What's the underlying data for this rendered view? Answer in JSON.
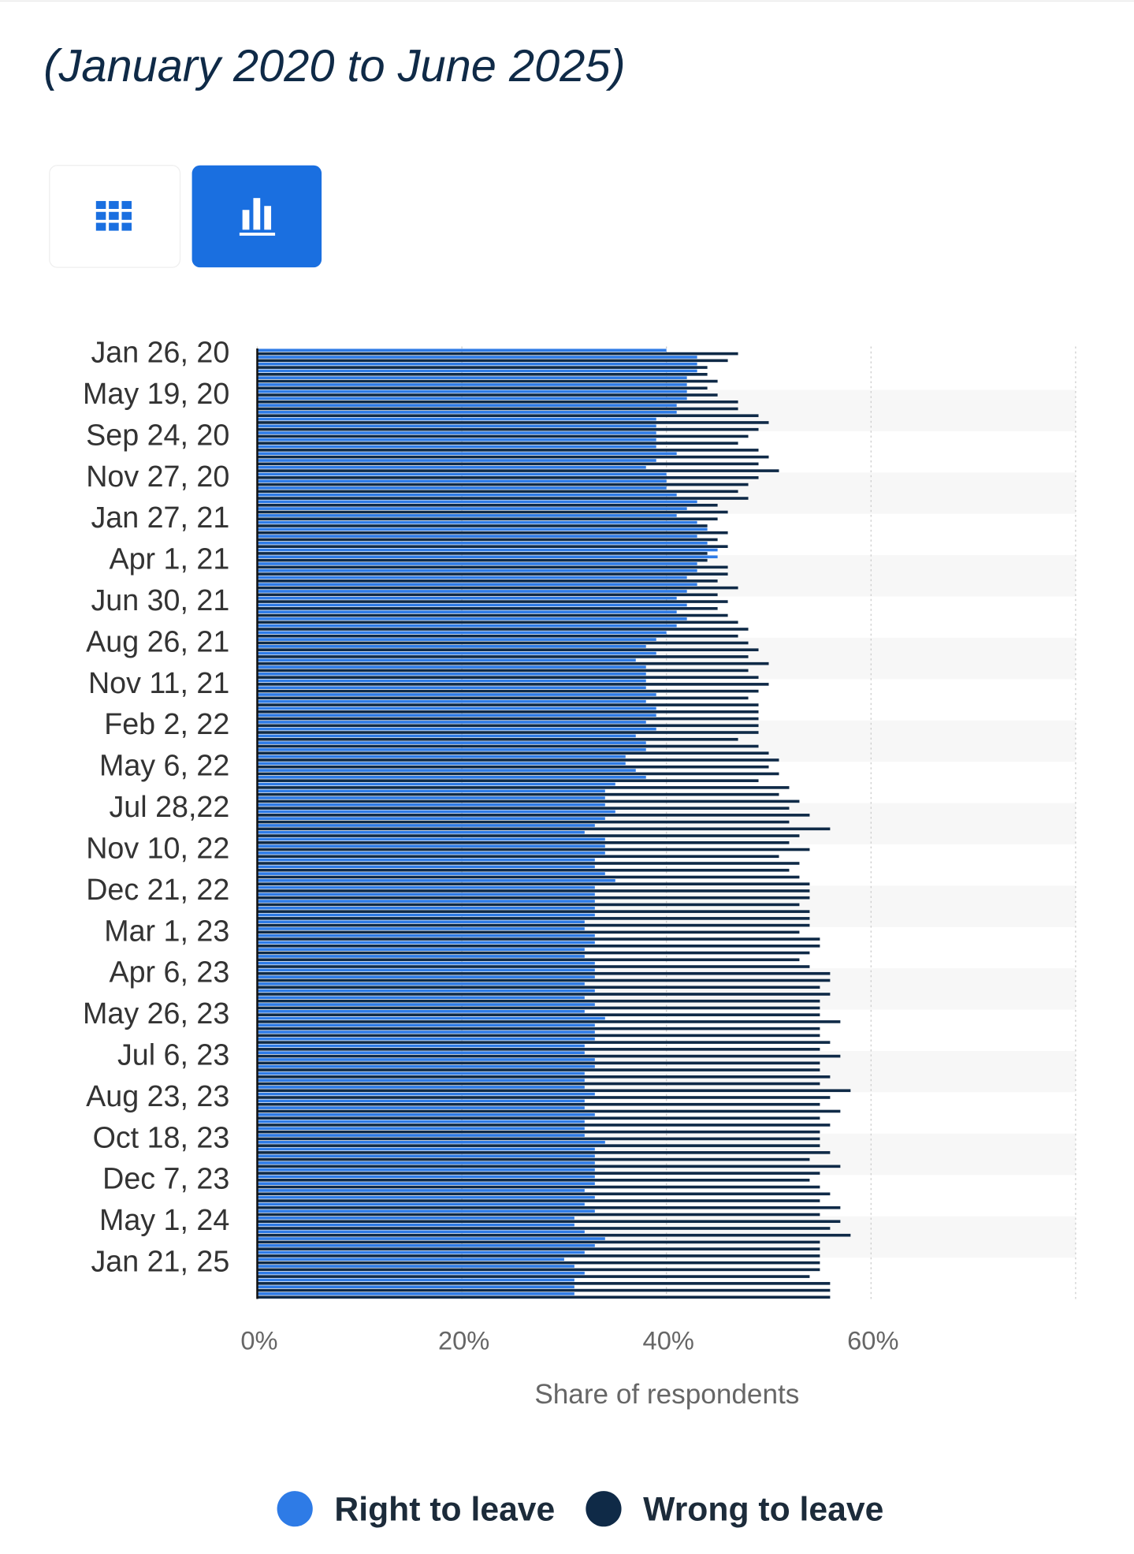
{
  "chart_data": {
    "type": "hbar",
    "subtitle": "(January 2020 to June 2025)",
    "x_label": "Share of respondents",
    "categories": [
      "Jan 26, 20",
      null,
      null,
      null,
      null,
      null,
      "May 19, 20",
      null,
      null,
      null,
      null,
      null,
      "Sep 24, 20",
      null,
      null,
      null,
      null,
      null,
      "Nov 27, 20",
      null,
      null,
      null,
      null,
      null,
      "Jan 27, 21",
      null,
      null,
      null,
      null,
      null,
      "Apr 1, 21",
      null,
      null,
      null,
      null,
      null,
      "Jun 30, 21",
      null,
      null,
      null,
      null,
      null,
      "Aug 26, 21",
      null,
      null,
      null,
      null,
      null,
      "Nov 11, 21",
      null,
      null,
      null,
      null,
      null,
      "Feb 2, 22",
      null,
      null,
      null,
      null,
      null,
      "May 6, 22",
      null,
      null,
      null,
      null,
      null,
      "Jul 28,22",
      null,
      null,
      null,
      null,
      null,
      "Nov 10, 22",
      null,
      null,
      null,
      null,
      null,
      "Dec 21, 22",
      null,
      null,
      null,
      null,
      null,
      "Mar 1, 23",
      null,
      null,
      null,
      null,
      null,
      "Apr 6, 23",
      null,
      null,
      null,
      null,
      null,
      "May 26, 23",
      null,
      null,
      null,
      null,
      null,
      "Jul 6, 23",
      null,
      null,
      null,
      null,
      null,
      "Aug 23, 23",
      null,
      null,
      null,
      null,
      null,
      "Oct 18, 23",
      null,
      null,
      null,
      null,
      null,
      "Dec 7, 23",
      null,
      null,
      null,
      null,
      null,
      "May 1, 24",
      null,
      null,
      null,
      null,
      null,
      "Jan 21, 25",
      null,
      null,
      null,
      null,
      null
    ],
    "series": [
      {
        "name": "Right to leave",
        "color": "#2e7be6",
        "values": [
          40,
          43,
          43,
          43,
          42,
          42,
          42,
          42,
          41,
          41,
          39,
          39,
          39,
          39,
          39,
          41,
          39,
          38,
          40,
          40,
          40,
          41,
          43,
          42,
          41,
          43,
          44,
          43,
          44,
          45,
          45,
          43,
          43,
          42,
          43,
          42,
          41,
          42,
          41,
          42,
          41,
          40,
          39,
          38,
          39,
          37,
          38,
          38,
          38,
          38,
          39,
          38,
          39,
          39,
          38,
          39,
          37,
          38,
          38,
          36,
          36,
          37,
          38,
          35,
          34,
          34,
          34,
          35,
          34,
          33,
          32,
          34,
          34,
          34,
          33,
          33,
          34,
          35,
          33,
          33,
          33,
          33,
          33,
          32,
          32,
          33,
          33,
          32,
          32,
          33,
          33,
          33,
          32,
          33,
          32,
          33,
          32,
          34,
          33,
          33,
          33,
          32,
          32,
          33,
          33,
          32,
          32,
          32,
          33,
          32,
          32,
          33,
          32,
          32,
          32,
          34,
          33,
          33,
          33,
          33,
          33,
          33,
          32,
          33,
          32,
          33,
          31,
          31,
          32,
          34,
          33,
          32,
          30,
          31,
          32,
          31,
          31,
          31
        ]
      },
      {
        "name": "Wrong to leave",
        "color": "#0f2a47",
        "values": [
          47,
          46,
          44,
          44,
          45,
          44,
          45,
          47,
          47,
          49,
          50,
          49,
          48,
          47,
          49,
          50,
          49,
          51,
          49,
          48,
          47,
          48,
          45,
          46,
          45,
          44,
          46,
          45,
          46,
          44,
          44,
          46,
          46,
          45,
          47,
          45,
          46,
          45,
          46,
          47,
          48,
          47,
          48,
          49,
          48,
          50,
          48,
          49,
          50,
          49,
          48,
          49,
          49,
          49,
          49,
          49,
          47,
          49,
          50,
          51,
          50,
          51,
          49,
          52,
          51,
          53,
          52,
          54,
          52,
          56,
          53,
          52,
          54,
          51,
          53,
          52,
          53,
          54,
          54,
          54,
          53,
          54,
          54,
          54,
          53,
          55,
          55,
          54,
          53,
          54,
          56,
          56,
          55,
          56,
          55,
          55,
          55,
          57,
          55,
          55,
          56,
          55,
          57,
          55,
          55,
          56,
          55,
          58,
          56,
          55,
          57,
          55,
          56,
          55,
          55,
          55,
          56,
          54,
          57,
          55,
          54,
          55,
          56,
          55,
          57,
          55,
          57,
          56,
          58,
          55,
          55,
          55,
          55,
          55,
          54,
          56,
          56,
          56
        ]
      }
    ],
    "xlim": [
      0,
      80
    ],
    "xticks": [
      {
        "value": 0,
        "label": "0%"
      },
      {
        "value": 20,
        "label": "20%"
      },
      {
        "value": 40,
        "label": "40%"
      },
      {
        "value": 60,
        "label": "60%"
      }
    ]
  }
}
